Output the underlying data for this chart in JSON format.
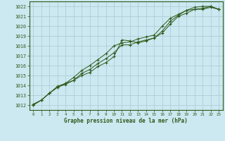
{
  "x": [
    0,
    1,
    2,
    3,
    4,
    5,
    6,
    7,
    8,
    9,
    10,
    11,
    12,
    13,
    14,
    15,
    16,
    17,
    18,
    19,
    20,
    21,
    22,
    23
  ],
  "line1": [
    1012.0,
    1012.5,
    1013.2,
    1013.8,
    1014.1,
    1014.5,
    1015.0,
    1015.3,
    1015.9,
    1016.3,
    1016.9,
    1018.6,
    1018.5,
    1018.3,
    1018.5,
    1018.8,
    1019.5,
    1020.5,
    1021.1,
    1021.6,
    1021.7,
    1021.8,
    1022.0,
    1021.7
  ],
  "line2": [
    1012.0,
    1012.5,
    1013.2,
    1013.8,
    1014.2,
    1014.5,
    1015.2,
    1015.6,
    1016.2,
    1016.7,
    1017.3,
    1018.1,
    1018.1,
    1018.4,
    1018.6,
    1018.8,
    1019.3,
    1020.2,
    1021.0,
    1021.3,
    1021.7,
    1021.7,
    1021.9,
    1021.7
  ],
  "line3": [
    1012.1,
    1012.5,
    1013.2,
    1013.9,
    1014.2,
    1014.8,
    1015.5,
    1016.0,
    1016.6,
    1017.2,
    1018.0,
    1018.3,
    1018.4,
    1018.7,
    1018.9,
    1019.1,
    1020.0,
    1020.8,
    1021.2,
    1021.6,
    1021.9,
    1022.0,
    1022.0,
    1021.7
  ],
  "line_color": "#2d5a1b",
  "bg_color": "#cce8f0",
  "grid_color": "#aac8d4",
  "title": "Graphe pression niveau de la mer (hPa)",
  "ylim": [
    1011.5,
    1022.5
  ],
  "yticks": [
    1012,
    1013,
    1014,
    1015,
    1016,
    1017,
    1018,
    1019,
    1020,
    1021,
    1022
  ],
  "xlim": [
    -0.5,
    23.5
  ],
  "xticks": [
    0,
    1,
    2,
    3,
    4,
    5,
    6,
    7,
    8,
    9,
    10,
    11,
    12,
    13,
    14,
    15,
    16,
    17,
    18,
    19,
    20,
    21,
    22,
    23
  ]
}
